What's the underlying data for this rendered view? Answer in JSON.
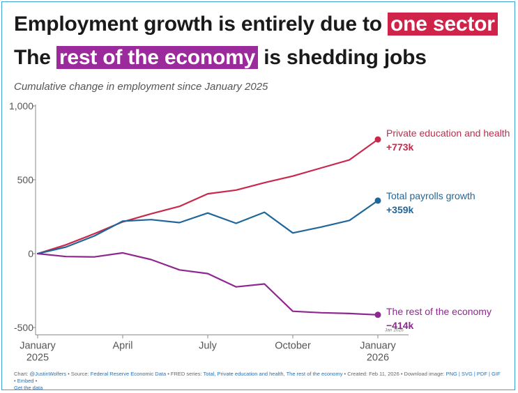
{
  "header": {
    "line1_prefix": "Employment growth is entirely due to ",
    "line1_highlight": "one sector",
    "line2_prefix": "The ",
    "line2_highlight": "rest of the economy",
    "line2_suffix": " is shedding jobs",
    "subtitle": "Cumulative change in employment since January 2025"
  },
  "colors": {
    "red": "#c8284c",
    "blue": "#1f6699",
    "purple": "#8e278f",
    "highlight_red": "#d0234a",
    "highlight_purple": "#9b2a9c"
  },
  "chart_data": {
    "type": "line",
    "x": [
      "2025-01",
      "2025-02",
      "2025-03",
      "2025-04",
      "2025-05",
      "2025-06",
      "2025-07",
      "2025-08",
      "2025-09",
      "2025-10",
      "2025-11",
      "2025-12",
      "2026-01"
    ],
    "ylim": [
      -550,
      1000
    ],
    "y_ticks": [
      {
        "value": 1000,
        "label": "1,000"
      },
      {
        "value": 500,
        "label": "500"
      },
      {
        "value": 0,
        "label": "0"
      },
      {
        "value": -500,
        "label": "-500"
      }
    ],
    "x_ticks": [
      {
        "x": "2025-01",
        "line1": "January",
        "line2": "2025"
      },
      {
        "x": "2025-04",
        "line1": "April",
        "line2": ""
      },
      {
        "x": "2025-07",
        "line1": "July",
        "line2": ""
      },
      {
        "x": "2025-10",
        "line1": "October",
        "line2": ""
      },
      {
        "x": "2026-01",
        "line1": "January",
        "line2": "2026"
      }
    ],
    "series": [
      {
        "name": "Private education and health",
        "end_label": "+773k",
        "color": "#c8284c",
        "values": [
          0,
          60,
          135,
          215,
          270,
          320,
          405,
          430,
          480,
          525,
          580,
          635,
          773
        ]
      },
      {
        "name": "Total payrolls growth",
        "end_label": "+359k",
        "color": "#1f6699",
        "values": [
          0,
          45,
          120,
          220,
          230,
          210,
          275,
          205,
          280,
          140,
          180,
          225,
          359
        ]
      },
      {
        "name": "The rest of the economy",
        "end_label": "−414k",
        "color": "#8e278f",
        "values": [
          0,
          -20,
          -22,
          5,
          -40,
          -110,
          -135,
          -225,
          -205,
          -390,
          -400,
          -405,
          -414
        ]
      }
    ],
    "annotation": "Jan 2026"
  },
  "footer": {
    "chart_by_label": "Chart: ",
    "chart_by": "@JustinWolfers",
    "source_label": " • Source: ",
    "source": "Federal Reserve Economic Data",
    "fred_label": " • FRED series: ",
    "fred_series": "Total, Private education and health, The rest of the economy",
    "created": " • Created: Feb 11, 2026 • Download image: ",
    "downloads": "PNG | SVG | PDF | GIF",
    "embed_sep": " • ",
    "embed": "Embed",
    "get_data_sep": " • ",
    "get_data": "Get the data"
  }
}
